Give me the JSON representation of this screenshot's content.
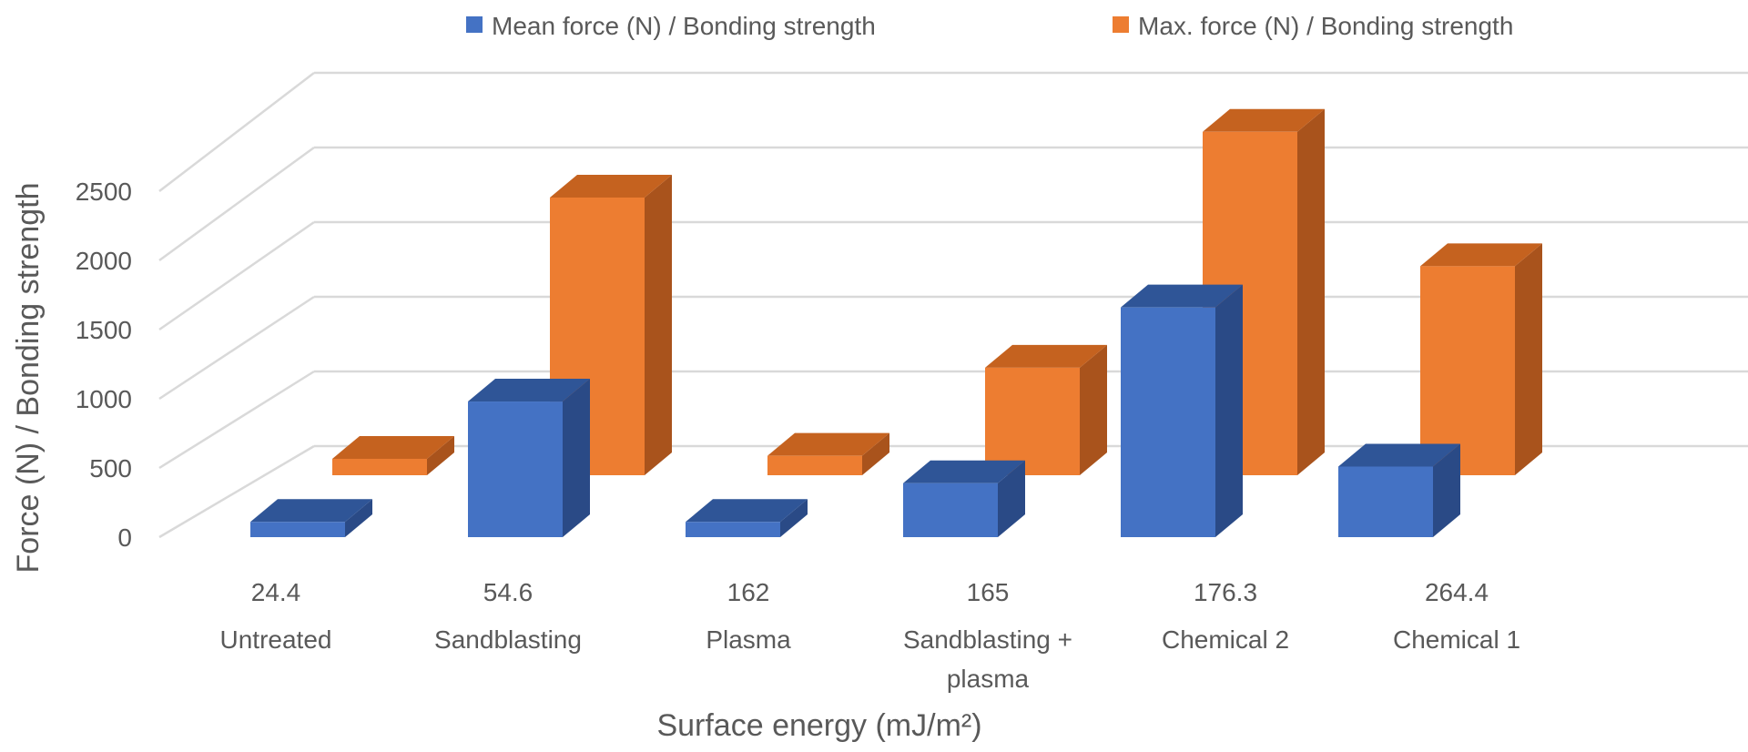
{
  "chart_data": {
    "type": "bar",
    "style": "3d-clustered-column",
    "title": "",
    "xlabel": "Surface energy (mJ/m²)",
    "ylabel": "Force (N) / Bonding strength",
    "ylim": [
      0,
      2500
    ],
    "yticks": [
      0,
      500,
      1000,
      1500,
      2000,
      2500
    ],
    "grid": true,
    "legend_position": "top",
    "categories": [
      {
        "energy": "24.4",
        "label": [
          "Untreated"
        ]
      },
      {
        "energy": "54.6",
        "label": [
          "Sandblasting"
        ]
      },
      {
        "energy": "162",
        "label": [
          "Plasma"
        ]
      },
      {
        "energy": "165",
        "label": [
          "Sandblasting +",
          "plasma"
        ]
      },
      {
        "energy": "176.3",
        "label": [
          "Chemical 2"
        ]
      },
      {
        "energy": "264.4",
        "label": [
          "Chemical 1"
        ]
      }
    ],
    "series": [
      {
        "name": "Mean force (N) / Bonding strength",
        "values": [
          110,
          980,
          110,
          390,
          1660,
          510
        ],
        "color": "#4472C4",
        "top_color": "#2F5597",
        "side_color": "#2A4A86"
      },
      {
        "name": "Max. force (N) / Bonding strength",
        "values": [
          110,
          1860,
          130,
          720,
          2300,
          1400
        ],
        "color": "#ED7D31",
        "top_color": "#C5621F",
        "side_color": "#A9531C"
      }
    ]
  }
}
